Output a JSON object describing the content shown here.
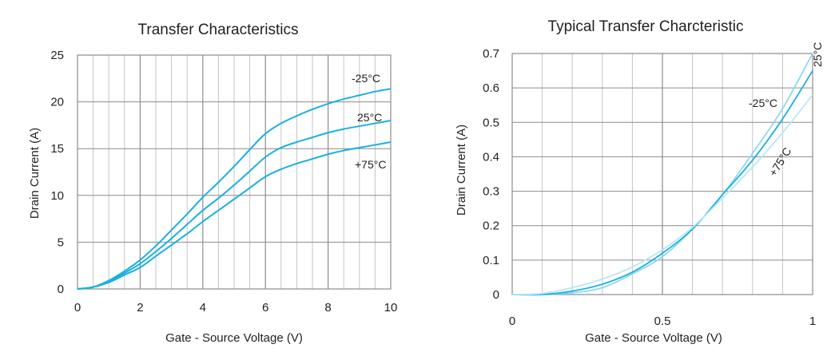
{
  "chart_data": [
    {
      "type": "line",
      "title": "Transfer Characteristics",
      "xlabel": "Gate - Source Voltage (V)",
      "ylabel": "Drain Current  (A)",
      "xlim": [
        0,
        10
      ],
      "ylim": [
        0,
        25
      ],
      "xticks": [
        "0",
        "2",
        "4",
        "6",
        "8",
        "10"
      ],
      "yticks": [
        "0",
        "5",
        "10",
        "15",
        "20",
        "25"
      ],
      "grid": true,
      "series": [
        {
          "name": "-25°C",
          "color": "#1ab0e0",
          "x": [
            0,
            0.5,
            1,
            1.5,
            2,
            2.5,
            3,
            3.5,
            4,
            4.5,
            5,
            5.5,
            6,
            6.5,
            7,
            7.5,
            8,
            8.5,
            9,
            9.5,
            10
          ],
          "y": [
            0,
            0.2,
            0.9,
            1.9,
            3.1,
            4.6,
            6.3,
            8.0,
            9.8,
            11.4,
            13.1,
            14.9,
            16.6,
            17.7,
            18.5,
            19.2,
            19.8,
            20.3,
            20.7,
            21.1,
            21.4
          ]
        },
        {
          "name": "25°C",
          "color": "#1ab0e0",
          "x": [
            0,
            0.5,
            1,
            1.5,
            2,
            2.5,
            3,
            3.5,
            4,
            4.5,
            5,
            5.5,
            6,
            6.5,
            7,
            7.5,
            8,
            8.5,
            9,
            9.5,
            10
          ],
          "y": [
            0,
            0.2,
            0.8,
            1.7,
            2.7,
            4.0,
            5.4,
            6.9,
            8.4,
            9.7,
            11.1,
            12.6,
            14.1,
            15.1,
            15.7,
            16.2,
            16.7,
            17.1,
            17.4,
            17.7,
            18.0
          ]
        },
        {
          "name": "+75°C",
          "color": "#1ab0e0",
          "x": [
            0,
            0.5,
            1,
            1.5,
            2,
            2.5,
            3,
            3.5,
            4,
            4.5,
            5,
            5.5,
            6,
            6.5,
            7,
            7.5,
            8,
            8.5,
            9,
            9.5,
            10
          ],
          "y": [
            0,
            0.2,
            0.7,
            1.5,
            2.3,
            3.5,
            4.7,
            5.9,
            7.2,
            8.4,
            9.6,
            10.8,
            12.0,
            12.8,
            13.4,
            13.9,
            14.4,
            14.8,
            15.1,
            15.4,
            15.7
          ]
        }
      ]
    },
    {
      "type": "line",
      "title": "Typical Transfer Charcteristic",
      "xlabel": "Gate - Source Voltage (V)",
      "ylabel": "Drain Current (A)",
      "xlim": [
        0,
        1
      ],
      "ylim": [
        0,
        0.7
      ],
      "xticks": [
        "0",
        "0.5",
        "1"
      ],
      "yticks": [
        "0",
        "0.1",
        "0.2",
        "0.3",
        "0.4",
        "0.5",
        "0.6",
        "0.7"
      ],
      "grid": true,
      "series": [
        {
          "name": "-25°C",
          "color": "#8ed8f2",
          "x": [
            0,
            0.1,
            0.2,
            0.3,
            0.4,
            0.5,
            0.6,
            0.7,
            0.8,
            0.9,
            1.0
          ],
          "y": [
            0,
            0.0,
            0.005,
            0.02,
            0.06,
            0.11,
            0.19,
            0.29,
            0.41,
            0.54,
            0.7
          ]
        },
        {
          "name": "25°C",
          "color": "#1ab0e0",
          "x": [
            0,
            0.1,
            0.2,
            0.3,
            0.4,
            0.5,
            0.6,
            0.7,
            0.8,
            0.9,
            1.0
          ],
          "y": [
            0,
            0.0,
            0.01,
            0.03,
            0.065,
            0.12,
            0.19,
            0.29,
            0.39,
            0.51,
            0.65
          ]
        },
        {
          "name": "+75°C",
          "color": "#b9e6f6",
          "x": [
            0,
            0.1,
            0.2,
            0.3,
            0.4,
            0.5,
            0.6,
            0.7,
            0.8,
            0.9,
            1.0
          ],
          "y": [
            0,
            0.003,
            0.02,
            0.045,
            0.08,
            0.13,
            0.195,
            0.28,
            0.37,
            0.47,
            0.58
          ]
        }
      ]
    }
  ]
}
